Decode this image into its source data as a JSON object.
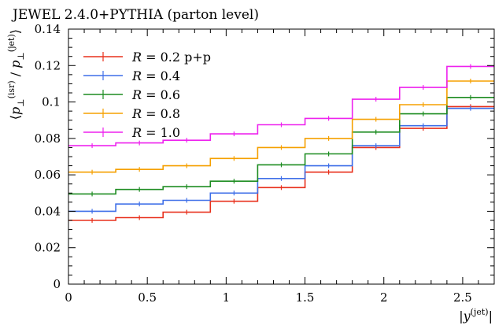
{
  "title": "JEWEL 2.4.0+PYTHIA (parton level)",
  "chart_data": {
    "type": "line",
    "title": "JEWEL 2.4.0+PYTHIA (parton level)",
    "xlabel": {
      "pre": "|",
      "var": "y",
      "sup": "(jet)",
      "post": "|"
    },
    "ylabel": {
      "open": "⟨",
      "num_var": "p",
      "num_sub": "⊥",
      "num_sup": "(isr)",
      "slash": " / ",
      "den_var": "p",
      "den_sub": "⊥",
      "den_sup": "(jet)",
      "close": "⟩"
    },
    "xlim": [
      0,
      2.7
    ],
    "ylim": [
      0,
      0.14
    ],
    "x_ticks": [
      0,
      0.5,
      1,
      1.5,
      2,
      2.5
    ],
    "x_tick_labels": [
      "0",
      "0.5",
      "1",
      "1.5",
      "2",
      "2.5"
    ],
    "y_ticks": [
      0,
      0.02,
      0.04,
      0.06,
      0.08,
      0.1,
      0.12,
      0.14
    ],
    "y_tick_labels": [
      "0",
      "0.02",
      "0.04",
      "0.06",
      "0.08",
      "0.1",
      "0.12",
      "0.14"
    ],
    "bin_edges": [
      0,
      0.3,
      0.6,
      0.9,
      1.2,
      1.5,
      1.8,
      2.1,
      2.4,
      2.7
    ],
    "legend_position": "top-left",
    "series": [
      {
        "name": "R = 0.2 p+p",
        "label_var": "R",
        "label_rest": " = 0.2 p+p",
        "color": "#e8301c",
        "values": [
          0.035,
          0.0365,
          0.0395,
          0.0455,
          0.053,
          0.0615,
          0.075,
          0.0855,
          0.0975
        ]
      },
      {
        "name": "R = 0.4",
        "label_var": "R",
        "label_rest": " = 0.4",
        "color": "#3f6fe8",
        "values": [
          0.04,
          0.044,
          0.046,
          0.05,
          0.058,
          0.065,
          0.076,
          0.087,
          0.0965
        ]
      },
      {
        "name": "R = 0.6",
        "label_var": "R",
        "label_rest": " = 0.6",
        "color": "#1d8c21",
        "values": [
          0.0495,
          0.052,
          0.0535,
          0.0565,
          0.0655,
          0.0715,
          0.0835,
          0.0935,
          0.1025
        ]
      },
      {
        "name": "R = 0.8",
        "label_var": "R",
        "label_rest": " = 0.8",
        "color": "#f5a000",
        "values": [
          0.0615,
          0.063,
          0.065,
          0.069,
          0.075,
          0.08,
          0.0905,
          0.0985,
          0.1115
        ]
      },
      {
        "name": "R = 1.0",
        "label_var": "R",
        "label_rest": " = 1.0",
        "color": "#ee22ee",
        "values": [
          0.076,
          0.0775,
          0.079,
          0.0825,
          0.0875,
          0.091,
          0.1015,
          0.108,
          0.1195
        ]
      }
    ]
  }
}
